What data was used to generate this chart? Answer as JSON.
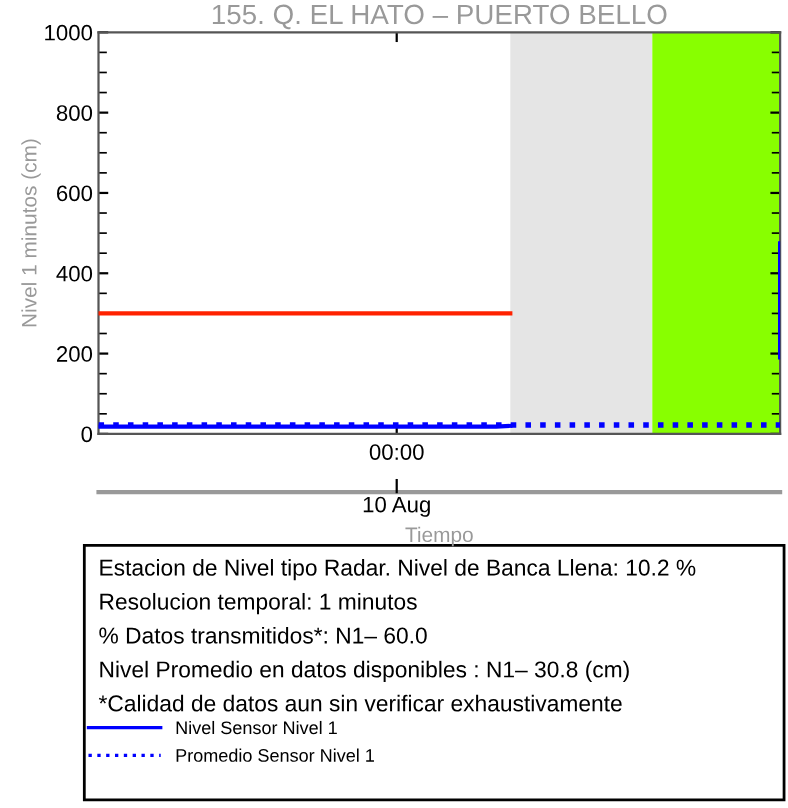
{
  "chart_data": {
    "type": "line",
    "title": "155. Q. EL HATO – PUERTO BELLO",
    "xlabel": "Tiempo",
    "ylabel": "Nivel 1 minutos (cm)",
    "categories": [
      null,
      null,
      null,
      null,
      null,
      null,
      null,
      null,
      null,
      null,
      null,
      null,
      null,
      null,
      null,
      null,
      null,
      null,
      null,
      null,
      null,
      "00:00",
      null,
      null,
      null,
      null,
      null,
      null,
      null,
      null,
      null,
      null,
      null,
      null,
      null,
      null,
      null,
      null,
      null,
      null,
      null,
      null,
      null,
      null,
      null,
      null,
      null,
      null,
      null
    ],
    "ylim": [
      0,
      1000
    ],
    "yticks": [
      0,
      200,
      400,
      600,
      800,
      1000
    ],
    "series": [
      {
        "type": "area",
        "color": "#e5e5e5",
        "values": [
          null,
          null,
          null,
          null,
          null,
          null,
          null,
          null,
          null,
          null,
          null,
          null,
          null,
          null,
          null,
          null,
          null,
          null,
          null,
          null,
          null,
          null,
          null,
          null,
          null,
          null,
          null,
          null,
          null,
          1000,
          1000,
          1000,
          1000,
          1000,
          1000,
          1000,
          1000,
          1000,
          1000,
          1000,
          null,
          null,
          null,
          null,
          null,
          null,
          null,
          null,
          null
        ]
      },
      {
        "type": "area",
        "color": "#88ff00",
        "values": [
          null,
          null,
          null,
          null,
          null,
          null,
          null,
          null,
          null,
          null,
          null,
          null,
          null,
          null,
          null,
          null,
          null,
          null,
          null,
          null,
          null,
          null,
          null,
          null,
          null,
          null,
          null,
          null,
          null,
          null,
          null,
          null,
          null,
          null,
          null,
          null,
          null,
          null,
          null,
          1000,
          1000,
          1000,
          1000,
          1000,
          1000,
          1000,
          1000,
          1000,
          1000
        ]
      },
      {
        "color": "#ff2200",
        "line_style": "solid",
        "values": [
          300,
          300,
          300,
          300,
          300,
          300,
          300,
          300,
          300,
          300,
          300,
          300,
          300,
          300,
          300,
          300,
          300,
          300,
          300,
          300,
          300,
          300,
          300,
          300,
          300,
          300,
          300,
          300,
          300,
          300,
          null,
          null,
          null,
          null,
          null,
          null,
          null,
          null,
          null,
          null,
          null,
          null,
          null,
          null,
          null,
          null,
          null,
          null,
          null
        ]
      },
      {
        "name": "Nivel Sensor Nivel 1",
        "color": "#0000ff",
        "line_style": "solid",
        "values": [
          18,
          18,
          18,
          18,
          18,
          18,
          18,
          18,
          18,
          18,
          18,
          18,
          18,
          18,
          18,
          18,
          18,
          18,
          18,
          18,
          18,
          18,
          18,
          18,
          18,
          18,
          18,
          18,
          18,
          20,
          null,
          null,
          null,
          null,
          null,
          null,
          null,
          null,
          null,
          null,
          null,
          null,
          null,
          null,
          null,
          null,
          null,
          null,
          null
        ]
      },
      {
        "type": "bar",
        "color": "#0000ff",
        "values": [
          null,
          null,
          null,
          null,
          null,
          null,
          null,
          null,
          null,
          null,
          null,
          null,
          null,
          null,
          null,
          null,
          null,
          null,
          null,
          null,
          null,
          null,
          null,
          null,
          null,
          null,
          null,
          null,
          null,
          null,
          null,
          null,
          null,
          null,
          null,
          null,
          null,
          null,
          null,
          null,
          null,
          null,
          null,
          null,
          null,
          null,
          null,
          null,
          295
        ],
        "base": [
          null,
          null,
          null,
          null,
          null,
          null,
          null,
          null,
          null,
          null,
          null,
          null,
          null,
          null,
          null,
          null,
          null,
          null,
          null,
          null,
          null,
          null,
          null,
          null,
          null,
          null,
          null,
          null,
          null,
          null,
          null,
          null,
          null,
          null,
          null,
          null,
          null,
          null,
          null,
          null,
          null,
          null,
          null,
          null,
          null,
          null,
          null,
          null,
          185
        ]
      },
      {
        "name": "Promedio Sensor Nivel 1",
        "color": "#0000ff",
        "line_style": "dotted",
        "values": [
          22,
          22,
          22,
          22,
          22,
          22,
          22,
          22,
          22,
          22,
          22,
          22,
          22,
          22,
          22,
          22,
          22,
          22,
          22,
          22,
          22,
          22,
          22,
          22,
          22,
          22,
          22,
          22,
          22,
          22,
          22,
          22,
          22,
          22,
          22,
          22,
          22,
          22,
          22,
          22,
          22,
          22,
          22,
          22,
          22,
          22,
          22,
          22,
          22
        ]
      }
    ],
    "annotations": [
      "10 Aug",
      "Estacion de Nivel tipo Radar. Nivel de Banca Llena: 10.2 %",
      "Resolucion temporal: 1 minutos",
      "% Datos transmitidos*: N1– 60.0",
      "Nivel Promedio en datos disponibles : N1– 30.8 (cm)",
      "*Calidad de datos aun sin verificar exhaustivamente"
    ],
    "legend": "bottom",
    "grid": false
  }
}
